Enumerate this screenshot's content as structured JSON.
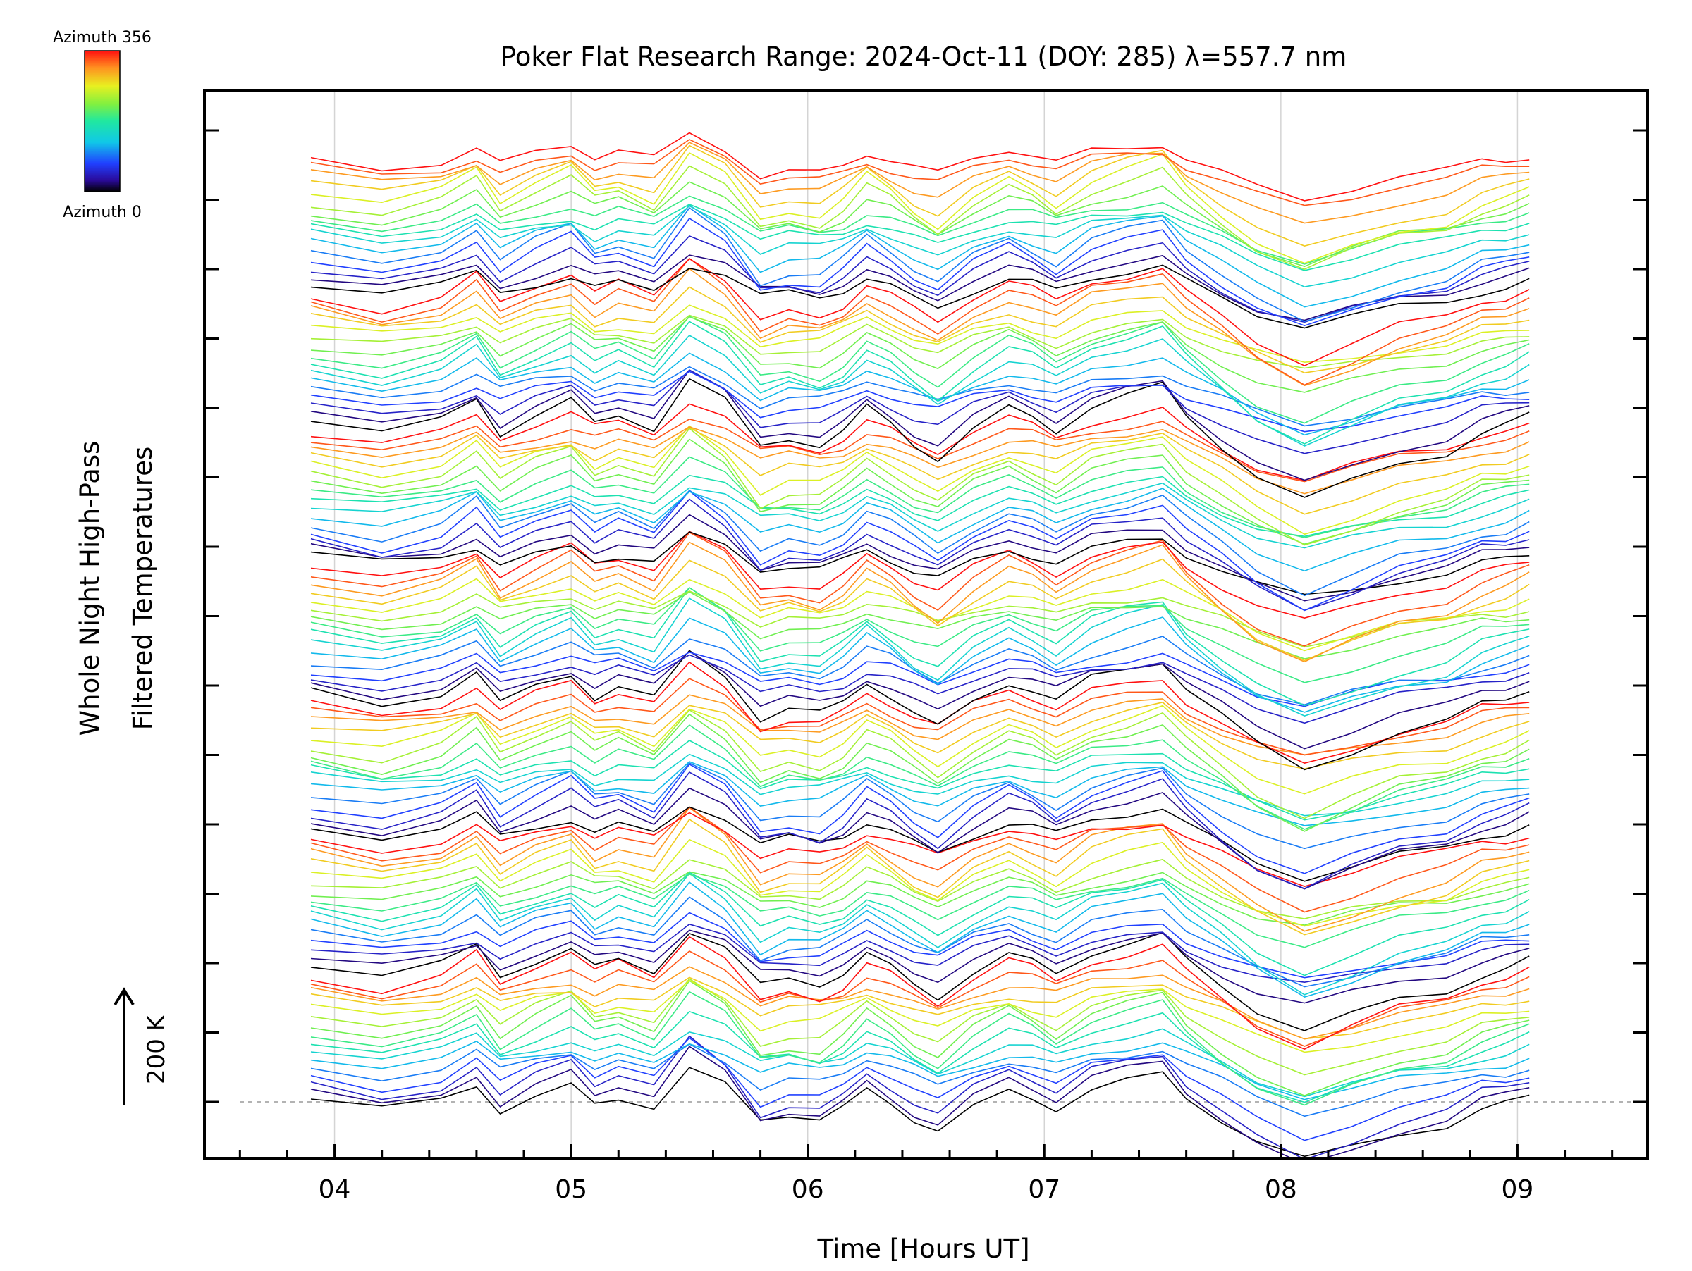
{
  "chart_data": {
    "type": "line",
    "title": "Poker Flat Research Range: 2024-Oct-11 (DOY: 285) λ=557.7 nm",
    "xlabel": "Time [Hours UT]",
    "ylabel_line1": "Whole Night High-Pass",
    "ylabel_line2": "Filtered Temperatures",
    "scale_label": "200 K",
    "colorbar": {
      "top_label": "Azimuth 356",
      "bottom_label": "Azimuth 0",
      "azimuth_min": 0,
      "azimuth_max": 356,
      "colormap": "rainbow"
    },
    "x_axis": {
      "range": [
        3.45,
        9.55
      ],
      "tick_labels": [
        "04",
        "05",
        "06",
        "07",
        "08",
        "09"
      ],
      "tick_values": [
        4,
        5,
        6,
        7,
        8,
        9
      ],
      "minor_step": 0.2,
      "grid": true
    },
    "y_axis": {
      "tick_count": 15,
      "tick_labels_shown": false
    },
    "series_groups": 7,
    "series_per_group": 16,
    "base_profile": {
      "x": [
        3.9,
        4.2,
        4.45,
        4.6,
        4.7,
        4.85,
        5.0,
        5.1,
        5.2,
        5.35,
        5.5,
        5.65,
        5.8,
        5.92,
        6.05,
        6.15,
        6.25,
        6.35,
        6.45,
        6.55,
        6.7,
        6.85,
        6.95,
        7.05,
        7.2,
        7.35,
        7.5,
        7.6,
        7.75,
        7.9,
        8.1,
        8.3,
        8.5,
        8.7,
        8.85,
        8.95,
        9.05
      ],
      "y": [
        0,
        -15,
        0,
        25,
        -10,
        10,
        25,
        0,
        10,
        -5,
        45,
        20,
        -30,
        -20,
        -25,
        -10,
        15,
        0,
        -20,
        -35,
        -5,
        15,
        5,
        -10,
        15,
        25,
        35,
        5,
        -25,
        -55,
        -80,
        -60,
        -40,
        -30,
        -10,
        -5,
        5
      ]
    }
  }
}
